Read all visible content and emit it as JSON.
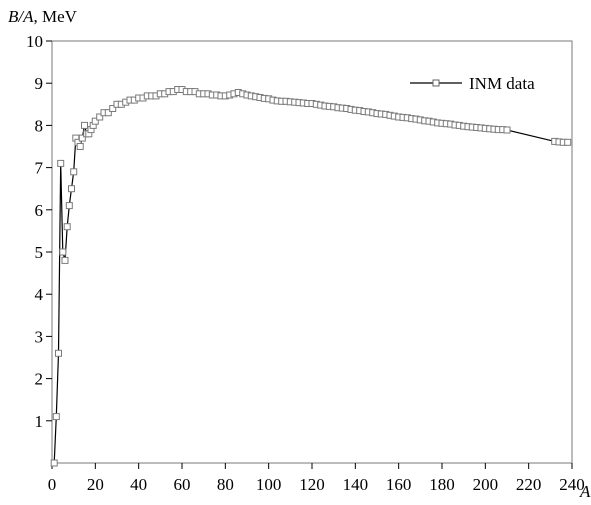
{
  "chart_data": {
    "type": "line",
    "title": "",
    "ylabel_var": "B/A",
    "ylabel_unit": ", MeV",
    "xlabel": "A",
    "xlim": [
      0,
      240
    ],
    "ylim": [
      0,
      10
    ],
    "x_ticks": [
      "0",
      "20",
      "40",
      "60",
      "80",
      "100",
      "120",
      "140",
      "160",
      "180",
      "200",
      "220",
      "240"
    ],
    "y_ticks": [
      "1",
      "2",
      "3",
      "4",
      "5",
      "6",
      "7",
      "8",
      "9",
      "10"
    ],
    "grid": false,
    "legend_position": "top-right",
    "series": [
      {
        "name": "INM data",
        "marker": "square",
        "x": [
          1,
          2,
          3,
          4,
          5,
          6,
          7,
          8,
          9,
          10,
          11,
          12,
          13,
          14,
          15,
          16,
          17,
          18,
          19,
          20,
          22,
          24,
          26,
          28,
          30,
          32,
          34,
          36,
          38,
          40,
          42,
          44,
          46,
          48,
          50,
          52,
          54,
          56,
          58,
          60,
          62,
          64,
          66,
          68,
          70,
          72,
          74,
          76,
          78,
          80,
          82,
          84,
          86,
          88,
          90,
          92,
          94,
          96,
          98,
          100,
          102,
          104,
          106,
          108,
          110,
          112,
          114,
          116,
          118,
          120,
          122,
          124,
          126,
          128,
          130,
          132,
          134,
          136,
          138,
          140,
          142,
          144,
          146,
          148,
          150,
          152,
          154,
          156,
          158,
          160,
          162,
          164,
          166,
          168,
          170,
          172,
          174,
          176,
          178,
          180,
          182,
          184,
          186,
          188,
          190,
          192,
          194,
          196,
          198,
          200,
          202,
          204,
          206,
          208,
          210,
          232,
          234,
          236,
          238
        ],
        "y": [
          0,
          1.1,
          2.6,
          7.1,
          5.0,
          4.8,
          5.6,
          6.1,
          6.5,
          6.9,
          7.7,
          7.6,
          7.5,
          7.7,
          8.0,
          7.8,
          7.8,
          7.9,
          8.0,
          8.1,
          8.2,
          8.3,
          8.3,
          8.4,
          8.5,
          8.5,
          8.55,
          8.6,
          8.6,
          8.65,
          8.65,
          8.7,
          8.7,
          8.7,
          8.75,
          8.75,
          8.8,
          8.8,
          8.85,
          8.85,
          8.8,
          8.8,
          8.8,
          8.75,
          8.75,
          8.75,
          8.72,
          8.72,
          8.7,
          8.7,
          8.72,
          8.75,
          8.78,
          8.75,
          8.72,
          8.7,
          8.68,
          8.66,
          8.64,
          8.63,
          8.6,
          8.58,
          8.57,
          8.57,
          8.56,
          8.55,
          8.54,
          8.53,
          8.52,
          8.52,
          8.5,
          8.48,
          8.46,
          8.45,
          8.44,
          8.42,
          8.41,
          8.4,
          8.38,
          8.36,
          8.35,
          8.33,
          8.32,
          8.3,
          8.28,
          8.27,
          8.26,
          8.24,
          8.22,
          8.2,
          8.19,
          8.18,
          8.16,
          8.15,
          8.13,
          8.11,
          8.1,
          8.08,
          8.06,
          8.05,
          8.04,
          8.03,
          8.01,
          8.0,
          7.98,
          7.97,
          7.96,
          7.95,
          7.94,
          7.93,
          7.92,
          7.91,
          7.9,
          7.9,
          7.89,
          7.62,
          7.61,
          7.6,
          7.6
        ]
      }
    ]
  }
}
